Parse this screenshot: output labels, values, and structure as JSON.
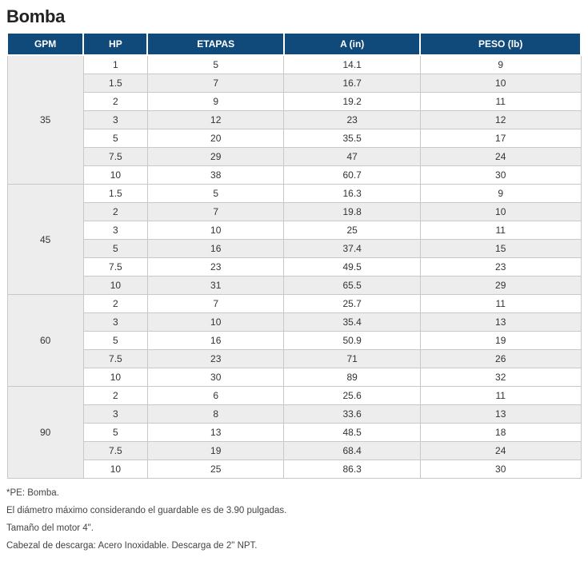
{
  "title": "Bomba",
  "table": {
    "header_bg": "#104a7b",
    "header_fg": "#ffffff",
    "row_alt_bg": "#ededed",
    "columns": [
      "GPM",
      "HP",
      "ETAPAS",
      "A (in)",
      "PESO (lb)"
    ],
    "groups": [
      {
        "gpm": "35",
        "rows": [
          {
            "hp": "1",
            "etapas": "5",
            "a": "14.1",
            "peso": "9"
          },
          {
            "hp": "1.5",
            "etapas": "7",
            "a": "16.7",
            "peso": "10"
          },
          {
            "hp": "2",
            "etapas": "9",
            "a": "19.2",
            "peso": "11"
          },
          {
            "hp": "3",
            "etapas": "12",
            "a": "23",
            "peso": "12"
          },
          {
            "hp": "5",
            "etapas": "20",
            "a": "35.5",
            "peso": "17"
          },
          {
            "hp": "7.5",
            "etapas": "29",
            "a": "47",
            "peso": "24"
          },
          {
            "hp": "10",
            "etapas": "38",
            "a": "60.7",
            "peso": "30"
          }
        ]
      },
      {
        "gpm": "45",
        "rows": [
          {
            "hp": "1.5",
            "etapas": "5",
            "a": "16.3",
            "peso": "9"
          },
          {
            "hp": "2",
            "etapas": "7",
            "a": "19.8",
            "peso": "10"
          },
          {
            "hp": "3",
            "etapas": "10",
            "a": "25",
            "peso": "11"
          },
          {
            "hp": "5",
            "etapas": "16",
            "a": "37.4",
            "peso": "15"
          },
          {
            "hp": "7.5",
            "etapas": "23",
            "a": "49.5",
            "peso": "23"
          },
          {
            "hp": "10",
            "etapas": "31",
            "a": "65.5",
            "peso": "29"
          }
        ]
      },
      {
        "gpm": "60",
        "rows": [
          {
            "hp": "2",
            "etapas": "7",
            "a": "25.7",
            "peso": "11"
          },
          {
            "hp": "3",
            "etapas": "10",
            "a": "35.4",
            "peso": "13"
          },
          {
            "hp": "5",
            "etapas": "16",
            "a": "50.9",
            "peso": "19"
          },
          {
            "hp": "7.5",
            "etapas": "23",
            "a": "71",
            "peso": "26"
          },
          {
            "hp": "10",
            "etapas": "30",
            "a": "89",
            "peso": "32"
          }
        ]
      },
      {
        "gpm": "90",
        "rows": [
          {
            "hp": "2",
            "etapas": "6",
            "a": "25.6",
            "peso": "11"
          },
          {
            "hp": "3",
            "etapas": "8",
            "a": "33.6",
            "peso": "13"
          },
          {
            "hp": "5",
            "etapas": "13",
            "a": "48.5",
            "peso": "18"
          },
          {
            "hp": "7.5",
            "etapas": "19",
            "a": "68.4",
            "peso": "24"
          },
          {
            "hp": "10",
            "etapas": "25",
            "a": "86.3",
            "peso": "30"
          }
        ]
      }
    ]
  },
  "notes": [
    "*PE: Bomba.",
    "El diámetro máximo considerando el guardable es de 3.90 pulgadas.",
    "Tamaño del motor 4\".",
    "Cabezal de descarga: Acero Inoxidable. Descarga de 2\" NPT."
  ]
}
